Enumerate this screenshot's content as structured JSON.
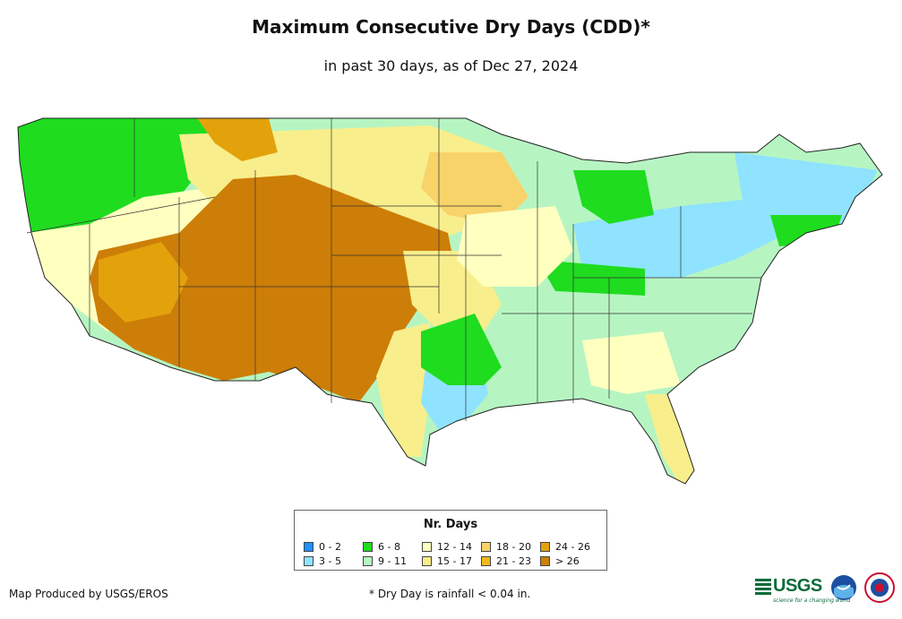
{
  "title": "Maximum Consecutive Dry Days (CDD)*",
  "subtitle": "in past 30 days, as of Dec 27, 2024",
  "legend": {
    "title": "Nr. Days",
    "items": [
      {
        "label": "0 - 2",
        "color": "#1e90ff"
      },
      {
        "label": "3 - 5",
        "color": "#8fe3ff"
      },
      {
        "label": "6 - 8",
        "color": "#1fdc1f"
      },
      {
        "label": "9 - 11",
        "color": "#b6f5c2"
      },
      {
        "label": "12 - 14",
        "color": "#ffffc0"
      },
      {
        "label": "15 - 17",
        "color": "#f8ee8c"
      },
      {
        "label": "18 - 20",
        "color": "#f7d36a"
      },
      {
        "label": "21 - 23",
        "color": "#f2b81c"
      },
      {
        "label": "24 - 26",
        "color": "#e3a20c"
      },
      {
        "label": "> 26",
        "color": "#cd7e08"
      }
    ]
  },
  "credit": "Map Produced by USGS/EROS",
  "footnote": "* Dry Day is rainfall < 0.04 in.",
  "logos": {
    "usgs": "USGS",
    "usgs_tagline": "science for a changing world"
  }
}
